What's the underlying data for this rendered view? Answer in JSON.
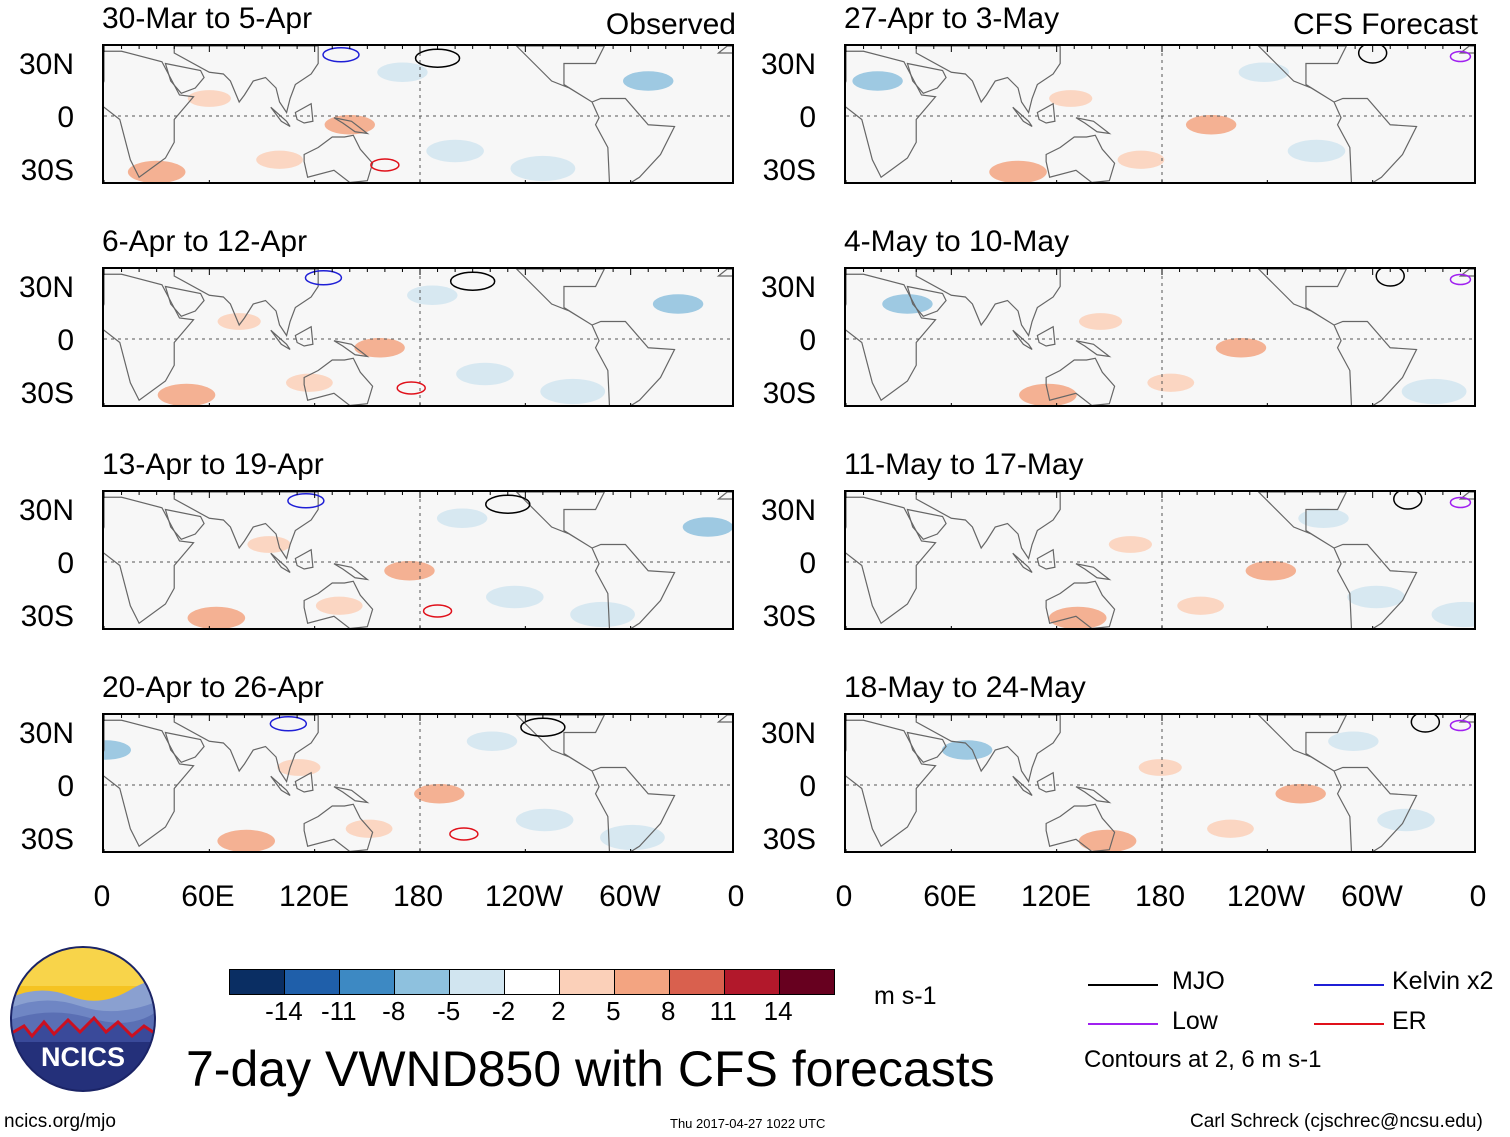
{
  "columns": {
    "left": {
      "tag": "Observed"
    },
    "right": {
      "tag": "CFS Forecast"
    }
  },
  "panels": [
    {
      "title": "30-Mar to 5-Apr",
      "source": "observed"
    },
    {
      "title": "6-Apr to 12-Apr",
      "source": "observed"
    },
    {
      "title": "13-Apr to 19-Apr",
      "source": "observed"
    },
    {
      "title": "20-Apr to 26-Apr",
      "source": "observed"
    },
    {
      "title": "27-Apr to 3-May",
      "source": "forecast"
    },
    {
      "title": "4-May to 10-May",
      "source": "forecast"
    },
    {
      "title": "11-May to 17-May",
      "source": "forecast"
    },
    {
      "title": "18-May to 24-May",
      "source": "forecast"
    }
  ],
  "lat_labels": [
    "30N",
    "0",
    "30S"
  ],
  "lon_labels": [
    "0",
    "60E",
    "120E",
    "180",
    "120W",
    "60W",
    "0"
  ],
  "colorbar": {
    "colors": [
      "#0a2e63",
      "#1f5faa",
      "#3d89c3",
      "#8ec1de",
      "#d1e5f0",
      "#ffffff",
      "#fbd0b9",
      "#f3a481",
      "#d9604e",
      "#b2182b",
      "#67001f"
    ],
    "ticks": [
      "-14",
      "-11",
      "-8",
      "-5",
      "-2",
      "2",
      "5",
      "8",
      "11",
      "14"
    ],
    "units": "m s-1"
  },
  "legend": {
    "items": [
      {
        "label": "MJO",
        "color": "#000000"
      },
      {
        "label": "Kelvin x2",
        "color": "#1f1fd6"
      },
      {
        "label": "Low",
        "color": "#a020f0"
      },
      {
        "label": "ER",
        "color": "#e0101a"
      }
    ],
    "note": "Contours at 2, 6 m s-1"
  },
  "logo": {
    "text": "NCICS"
  },
  "main_title": "7-day VWND850 with CFS forecasts",
  "footer": {
    "url": "ncics.org/mjo",
    "timestamp": "Thu 2017-04-27 1022 UTC",
    "author": "Carl Schreck (cjschrec@ncsu.edu)"
  }
}
